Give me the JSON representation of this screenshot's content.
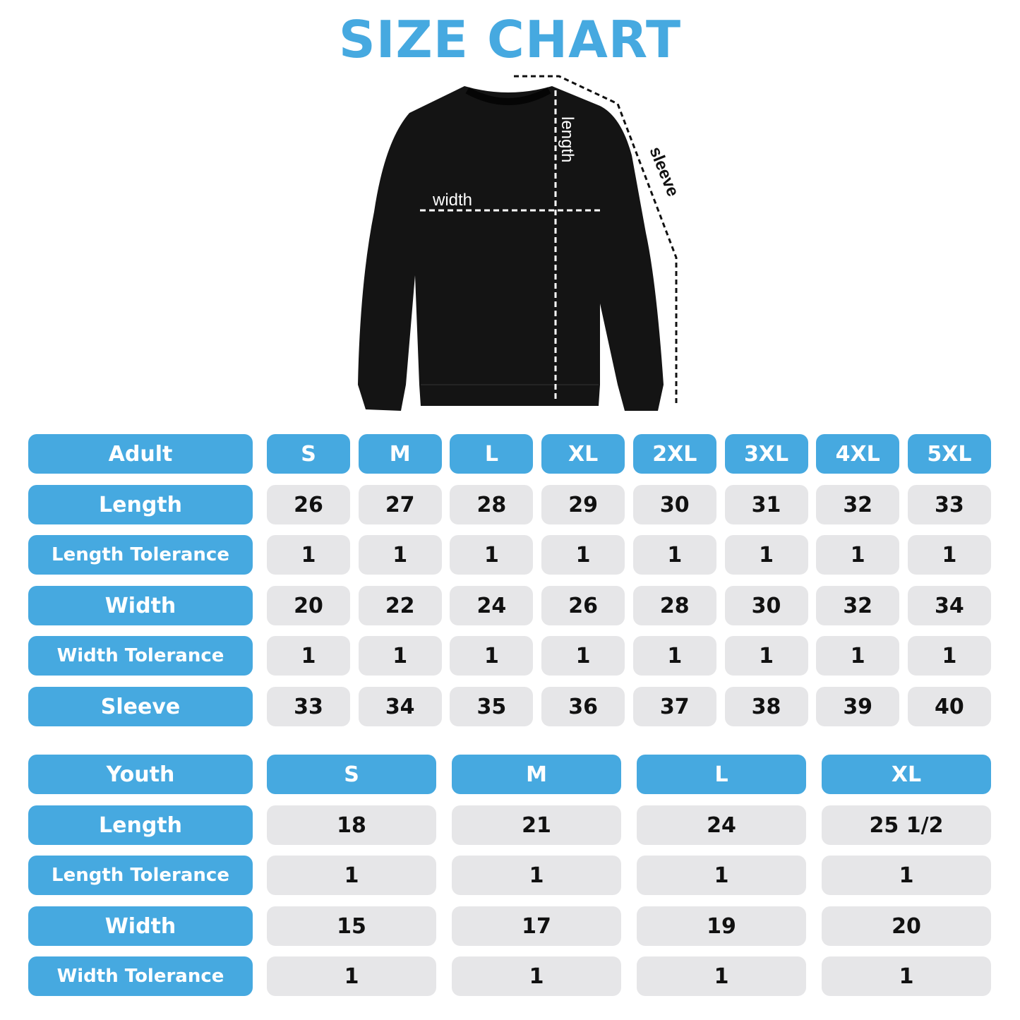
{
  "title": "SIZE CHART",
  "colors": {
    "accent": "#46a9e0",
    "cell_background": "#e6e6e8",
    "text": "#111111"
  },
  "garment": {
    "type": "crewneck sweatshirt",
    "labels": {
      "width": "width",
      "length": "length",
      "sleeve": "sleeve"
    }
  },
  "adult": {
    "header": "Adult",
    "sizes": [
      "S",
      "M",
      "L",
      "XL",
      "2XL",
      "3XL",
      "4XL",
      "5XL"
    ],
    "rows": [
      {
        "label": "Length",
        "values": [
          "26",
          "27",
          "28",
          "29",
          "30",
          "31",
          "32",
          "33"
        ]
      },
      {
        "label": "Length Tolerance",
        "values": [
          "1",
          "1",
          "1",
          "1",
          "1",
          "1",
          "1",
          "1"
        ]
      },
      {
        "label": "Width",
        "values": [
          "20",
          "22",
          "24",
          "26",
          "28",
          "30",
          "32",
          "34"
        ]
      },
      {
        "label": "Width Tolerance",
        "values": [
          "1",
          "1",
          "1",
          "1",
          "1",
          "1",
          "1",
          "1"
        ]
      },
      {
        "label": "Sleeve",
        "values": [
          "33",
          "34",
          "35",
          "36",
          "37",
          "38",
          "39",
          "40"
        ]
      }
    ]
  },
  "youth": {
    "header": "Youth",
    "sizes": [
      "S",
      "M",
      "L",
      "XL"
    ],
    "rows": [
      {
        "label": "Length",
        "values": [
          "18",
          "21",
          "24",
          "25 1/2"
        ]
      },
      {
        "label": "Length Tolerance",
        "values": [
          "1",
          "1",
          "1",
          "1"
        ]
      },
      {
        "label": "Width",
        "values": [
          "15",
          "17",
          "19",
          "20"
        ]
      },
      {
        "label": "Width Tolerance",
        "values": [
          "1",
          "1",
          "1",
          "1"
        ]
      }
    ]
  }
}
